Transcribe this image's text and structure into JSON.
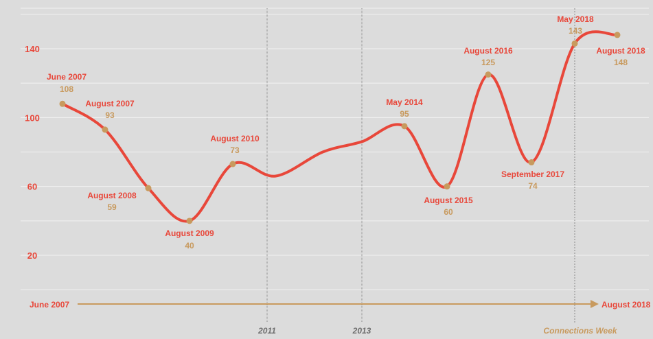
{
  "chart_data": {
    "type": "line",
    "title": "",
    "xlabel": "",
    "ylabel": "",
    "ylim": [
      0,
      160
    ],
    "y_ticks": [
      20,
      60,
      100,
      140
    ],
    "grid": true,
    "colors": {
      "line": "#e8473a",
      "marker": "#c89a5e",
      "label": "#e8473a",
      "value": "#c89a5e",
      "background": "#dcdcdc"
    },
    "series": [
      {
        "points": [
          {
            "label": "June 2007",
            "value": 108
          },
          {
            "label": "August 2007",
            "value": 93
          },
          {
            "label": "August 2008",
            "value": 59
          },
          {
            "label": "August 2009",
            "value": 40
          },
          {
            "label": "August 2010",
            "value": 73
          },
          {
            "label": "May 2014",
            "value": 95
          },
          {
            "label": "August 2015",
            "value": 60
          },
          {
            "label": "August 2016",
            "value": 125
          },
          {
            "label": "September 2017",
            "value": 74
          },
          {
            "label": "May 2018",
            "value": 143
          },
          {
            "label": "August 2018",
            "value": 148
          }
        ]
      }
    ],
    "timeline": {
      "start_label": "June 2007",
      "end_label": "August 2018"
    },
    "reference_lines": [
      {
        "label": "2011"
      },
      {
        "label": "2013"
      },
      {
        "label": "Connections Week"
      }
    ]
  }
}
